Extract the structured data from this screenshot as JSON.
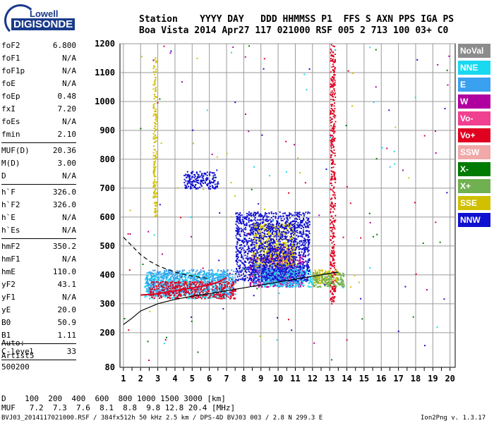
{
  "logo": {
    "top": "Lowell",
    "bottom": "DIGISONDE"
  },
  "header": {
    "line1": "Station    YYYY DAY   DDD HHMMSS P1  FFS S AXN PPS IGA PS",
    "line2": "Boa Vista 2014 Apr27 117 021000 RSF 005 2 713 100 03+ C0"
  },
  "params": {
    "group1": [
      {
        "label": "foF2",
        "value": "6.800"
      },
      {
        "label": "foF1",
        "value": "N/A"
      },
      {
        "label": "foF1p",
        "value": "N/A"
      },
      {
        "label": "foE",
        "value": "N/A"
      },
      {
        "label": "foEp",
        "value": "0.48"
      },
      {
        "label": "fxI",
        "value": "7.20"
      },
      {
        "label": "foEs",
        "value": "N/A"
      },
      {
        "label": "fmin",
        "value": "2.10"
      }
    ],
    "group2": [
      {
        "label": "MUF(D)",
        "value": "20.36"
      },
      {
        "label": "M(D)",
        "value": "3.00"
      },
      {
        "label": "D",
        "value": "N/A"
      }
    ],
    "group3": [
      {
        "label": "h`F",
        "value": "326.0"
      },
      {
        "label": "h`F2",
        "value": "326.0"
      },
      {
        "label": "h`E",
        "value": "N/A"
      },
      {
        "label": "h`Es",
        "value": "N/A"
      }
    ],
    "group4": [
      {
        "label": "hmF2",
        "value": "350.2"
      },
      {
        "label": "hmF1",
        "value": "N/A"
      },
      {
        "label": "hmE",
        "value": "110.0"
      },
      {
        "label": "yF2",
        "value": "43.1"
      },
      {
        "label": "yF1",
        "value": "N/A"
      },
      {
        "label": "yE",
        "value": "20.0"
      },
      {
        "label": "B0",
        "value": "50.9"
      },
      {
        "label": "B1",
        "value": "1.11"
      }
    ],
    "group5": [
      {
        "label": "C-level",
        "value": "33"
      }
    ]
  },
  "auto": {
    "l1": "Auto:",
    "l2": "Artist5",
    "l3": "500200"
  },
  "legend": [
    {
      "label": "NoVal",
      "color": "#8c8c8c"
    },
    {
      "label": "NNE",
      "color": "#19d8f0"
    },
    {
      "label": "E",
      "color": "#3aa0f0"
    },
    {
      "label": "W",
      "color": "#b000a0"
    },
    {
      "label": "Vo-",
      "color": "#f04090"
    },
    {
      "label": "Vo+",
      "color": "#e00020"
    },
    {
      "label": "SSW",
      "color": "#f0a8a8"
    },
    {
      "label": "X-",
      "color": "#007a00"
    },
    {
      "label": "X+",
      "color": "#70b050"
    },
    {
      "label": "SSE",
      "color": "#d0c000"
    },
    {
      "label": "NNW",
      "color": "#1010d0"
    }
  ],
  "footer": {
    "d_line": "D    100  200  400  600  800 1000 1500 3000 [km]",
    "muf_line": "MUF   7.2  7.3  7.6  8.1  8.8  9.8 12.8 20.4 [MHz]",
    "file_line": "BVJ03_2014117021000.RSF / 384fx512h 50 kHz 2.5 km / DPS-4D BVJ03 003 / 2.8 N 299.3 E",
    "version": "Ion2Png v. 1.3.17"
  },
  "chart_data": {
    "type": "scatter",
    "title": "",
    "xlabel": "",
    "ylabel": "",
    "x_ticks": [
      "1",
      "2",
      "3",
      "4",
      "5",
      "6",
      "7",
      "8",
      "9",
      "10",
      "11",
      "12",
      "13",
      "14",
      "15",
      "16",
      "17",
      "18",
      "19",
      "20"
    ],
    "y_ticks": [
      "80",
      "200",
      "300",
      "400",
      "500",
      "600",
      "700",
      "800",
      "900",
      "1000",
      "1100",
      "1200"
    ],
    "xlim": [
      0.8,
      20.3
    ],
    "ylim": [
      80,
      1200
    ],
    "grid": true,
    "legend_position": "right",
    "series": [
      {
        "name": "W",
        "color": "#b000a0",
        "blobs": [
          [
            8.3,
            11.5,
            360,
            470
          ],
          [
            9.4,
            10.8,
            390,
            500
          ]
        ]
      },
      {
        "name": "NNE",
        "color": "#19d8f0",
        "blobs": [
          [
            2.2,
            7.0,
            320,
            410
          ],
          [
            9.0,
            12.0,
            360,
            420
          ]
        ]
      },
      {
        "name": "E",
        "color": "#3aa0f0",
        "blobs": [
          [
            2.3,
            7.5,
            330,
            420
          ],
          [
            8.5,
            11.5,
            370,
            440
          ]
        ]
      },
      {
        "name": "SSE",
        "color": "#d0c000",
        "blobs": [
          [
            8.5,
            11.0,
            430,
            580
          ],
          [
            12.0,
            13.5,
            370,
            420
          ],
          [
            2.7,
            2.9,
            600,
            1160
          ]
        ]
      },
      {
        "name": "NNW",
        "color": "#1010d0",
        "blobs": [
          [
            7.5,
            11.8,
            380,
            620
          ],
          [
            4.5,
            6.5,
            700,
            760
          ]
        ]
      },
      {
        "name": "Vo+",
        "color": "#e00020",
        "blobs": [
          [
            2.5,
            7.5,
            320,
            380
          ],
          [
            13.0,
            13.3,
            300,
            1200
          ]
        ]
      },
      {
        "name": "X+",
        "color": "#70b050",
        "blobs": [
          [
            12.0,
            13.8,
            360,
            410
          ]
        ]
      }
    ],
    "trace_red": {
      "name": "Vo+",
      "x": [
        2.0,
        2.5,
        3.0,
        3.5,
        4.0,
        4.5,
        5.0,
        5.5,
        6.0,
        6.5,
        7.0
      ],
      "y": [
        330,
        332,
        335,
        340,
        345,
        350,
        355,
        360,
        365,
        375,
        390
      ]
    },
    "curve_solid": {
      "x": [
        1.0,
        1.5,
        2.0,
        3.0,
        4.0,
        5.0,
        6.0,
        7.0,
        8.0,
        9.0,
        10.0,
        11.0,
        12.0,
        13.5
      ],
      "y": [
        228,
        250,
        275,
        300,
        315,
        326,
        335,
        345,
        355,
        365,
        375,
        385,
        395,
        410
      ]
    },
    "curve_dashed": {
      "x": [
        1.0,
        1.5,
        2.0,
        2.5,
        3.0,
        3.5,
        4.0,
        4.5,
        5.0,
        5.5,
        6.0
      ],
      "y": [
        530,
        500,
        470,
        448,
        432,
        420,
        410,
        402,
        396,
        391,
        388
      ]
    }
  }
}
